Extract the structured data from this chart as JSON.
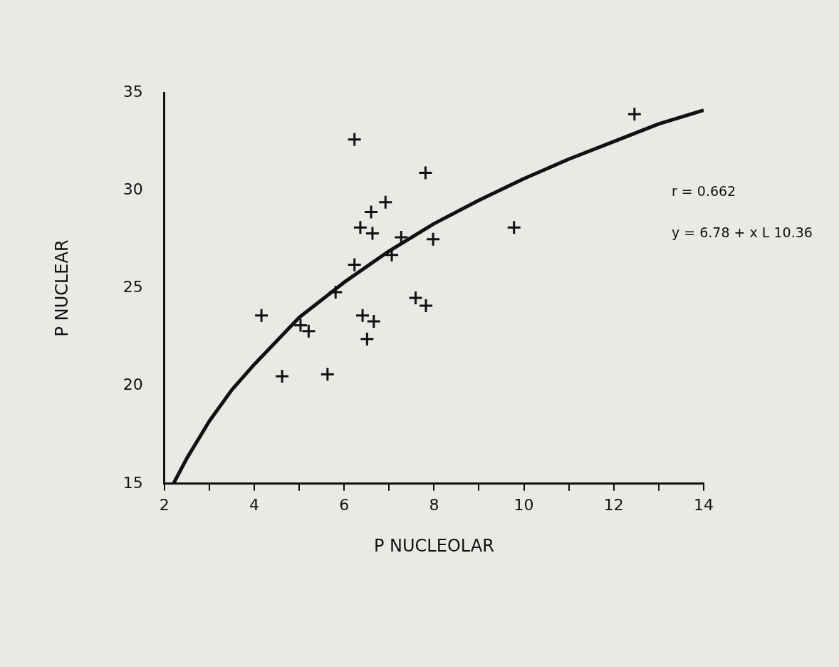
{
  "chart_data": {
    "type": "scatter",
    "xlabel": "P NUCLEOLAR",
    "ylabel": "P NUCLEAR",
    "xlim": [
      2,
      14
    ],
    "xticks": [
      2,
      {
        "value": 3,
        "label": null
      },
      4,
      {
        "value": 5,
        "label": null
      },
      6,
      {
        "value": 7,
        "label": null
      },
      8,
      {
        "value": 9,
        "label": null
      },
      10,
      {
        "value": 11,
        "label": null
      },
      12,
      {
        "value": 13,
        "label": null
      },
      14
    ],
    "ylim": [
      15,
      35
    ],
    "yticks": [
      15,
      20,
      25,
      30,
      35
    ],
    "grid": false,
    "annotations": [
      "r = 0.662",
      "y = 6.78 + x L 10.36"
    ],
    "series": [
      {
        "type": "scatter",
        "color": "#111111",
        "marker": "cross",
        "x": [
          12.46,
          6.23,
          7.81,
          6.92,
          6.6,
          6.36,
          6.63,
          7.27,
          7.98,
          9.78,
          7.06,
          6.23,
          5.81,
          7.59,
          7.82,
          4.16,
          6.41,
          6.66,
          5.03,
          5.21,
          6.51,
          4.62,
          5.63
        ],
        "values": [
          33.9,
          32.6,
          30.9,
          29.4,
          28.9,
          28.1,
          27.8,
          27.6,
          27.5,
          28.1,
          26.7,
          26.2,
          24.8,
          24.5,
          24.1,
          23.6,
          23.6,
          23.3,
          23.1,
          22.8,
          22.4,
          20.5,
          20.6
        ]
      },
      {
        "type": "line",
        "color": "#111111",
        "marker": "none",
        "line_style": "solid",
        "x": [
          2.2,
          2.5,
          3,
          3.5,
          4,
          5,
          6,
          7,
          8,
          9,
          10,
          11,
          12,
          13,
          14
        ],
        "values": [
          15.0,
          16.3,
          18.2,
          19.8,
          21.1,
          23.5,
          25.3,
          26.9,
          28.3,
          29.5,
          30.6,
          31.6,
          32.5,
          33.4,
          34.1
        ]
      }
    ]
  }
}
